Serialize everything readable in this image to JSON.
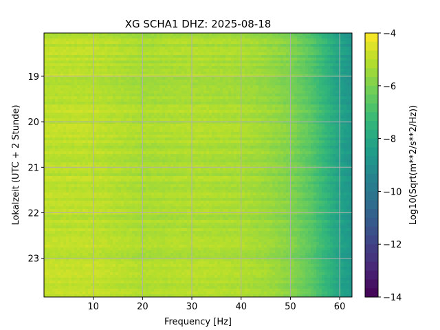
{
  "chart_data": {
    "type": "heatmap",
    "title": "XG SCHA1  DHZ: 2025-08-18",
    "xlabel": "Frequency [Hz]",
    "ylabel": "Lokalzeit (UTC + 2 Stunde)",
    "colorbar_label": "Log10(Sqrt(m**2/s**2/Hz))",
    "xlim": [
      0,
      62.5
    ],
    "ylim": [
      18.05,
      23.85
    ],
    "y_inverted": true,
    "x_ticks": [
      10,
      20,
      30,
      40,
      50,
      60
    ],
    "x_tick_labels": [
      "10",
      "20",
      "30",
      "40",
      "50",
      "60"
    ],
    "y_ticks": [
      19,
      20,
      21,
      22,
      23
    ],
    "y_tick_labels": [
      "19",
      "20",
      "21",
      "22",
      "23"
    ],
    "colorbar_range": [
      -14,
      -4
    ],
    "colorbar_ticks": [
      -4,
      -6,
      -8,
      -10,
      -12,
      -14
    ],
    "colorbar_tick_labels": [
      "−4",
      "−6",
      "−8",
      "−10",
      "−12",
      "−14"
    ],
    "colormap": "viridis",
    "grid": true,
    "value_profile_by_frequency": {
      "frequency_hz": [
        0,
        10,
        20,
        30,
        40,
        45,
        50,
        54,
        57,
        60,
        62.5
      ],
      "log10_amplitude": [
        -5.0,
        -5.0,
        -5.3,
        -5.2,
        -5.3,
        -5.5,
        -5.9,
        -6.6,
        -7.4,
        -8.3,
        -8.8
      ]
    }
  }
}
